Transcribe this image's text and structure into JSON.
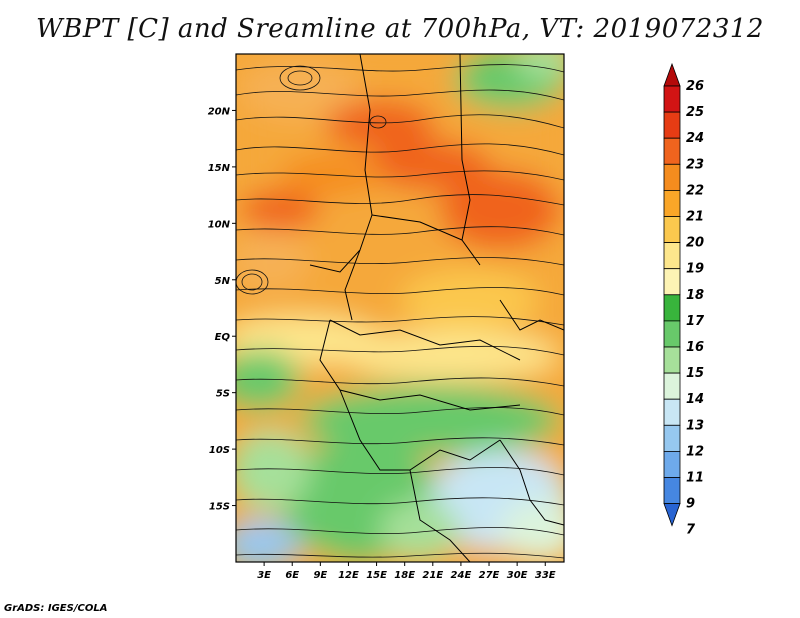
{
  "title": "WBPT [C] and Sreamline at 700hPa, VT: 2019072312",
  "credit": "GrADS: IGES/COLA",
  "map": {
    "lon_range": [
      0,
      35
    ],
    "lat_range": [
      -20,
      25
    ],
    "lon_ticks": [
      "3E",
      "6E",
      "9E",
      "12E",
      "15E",
      "18E",
      "21E",
      "24E",
      "27E",
      "30E",
      "33E"
    ],
    "lat_ticks": [
      "20N",
      "15N",
      "10N",
      "5N",
      "EQ",
      "5S",
      "10S",
      "15S"
    ]
  },
  "colorbar": {
    "levels": [
      "26",
      "25",
      "24",
      "23",
      "22",
      "21",
      "20",
      "19",
      "18",
      "17",
      "16",
      "15",
      "14",
      "13",
      "12",
      "11",
      "9",
      "7"
    ],
    "colors": [
      "#b40a0a",
      "#d21414",
      "#e63c14",
      "#f0641e",
      "#f58c1e",
      "#faa628",
      "#fbc84e",
      "#fde68c",
      "#fdf3b4",
      "#38b43c",
      "#68c96a",
      "#a6e09a",
      "#dcf4dc",
      "#c8e6f5",
      "#96c8f0",
      "#6eaaeb",
      "#4687e1",
      "#2864d2"
    ]
  }
}
